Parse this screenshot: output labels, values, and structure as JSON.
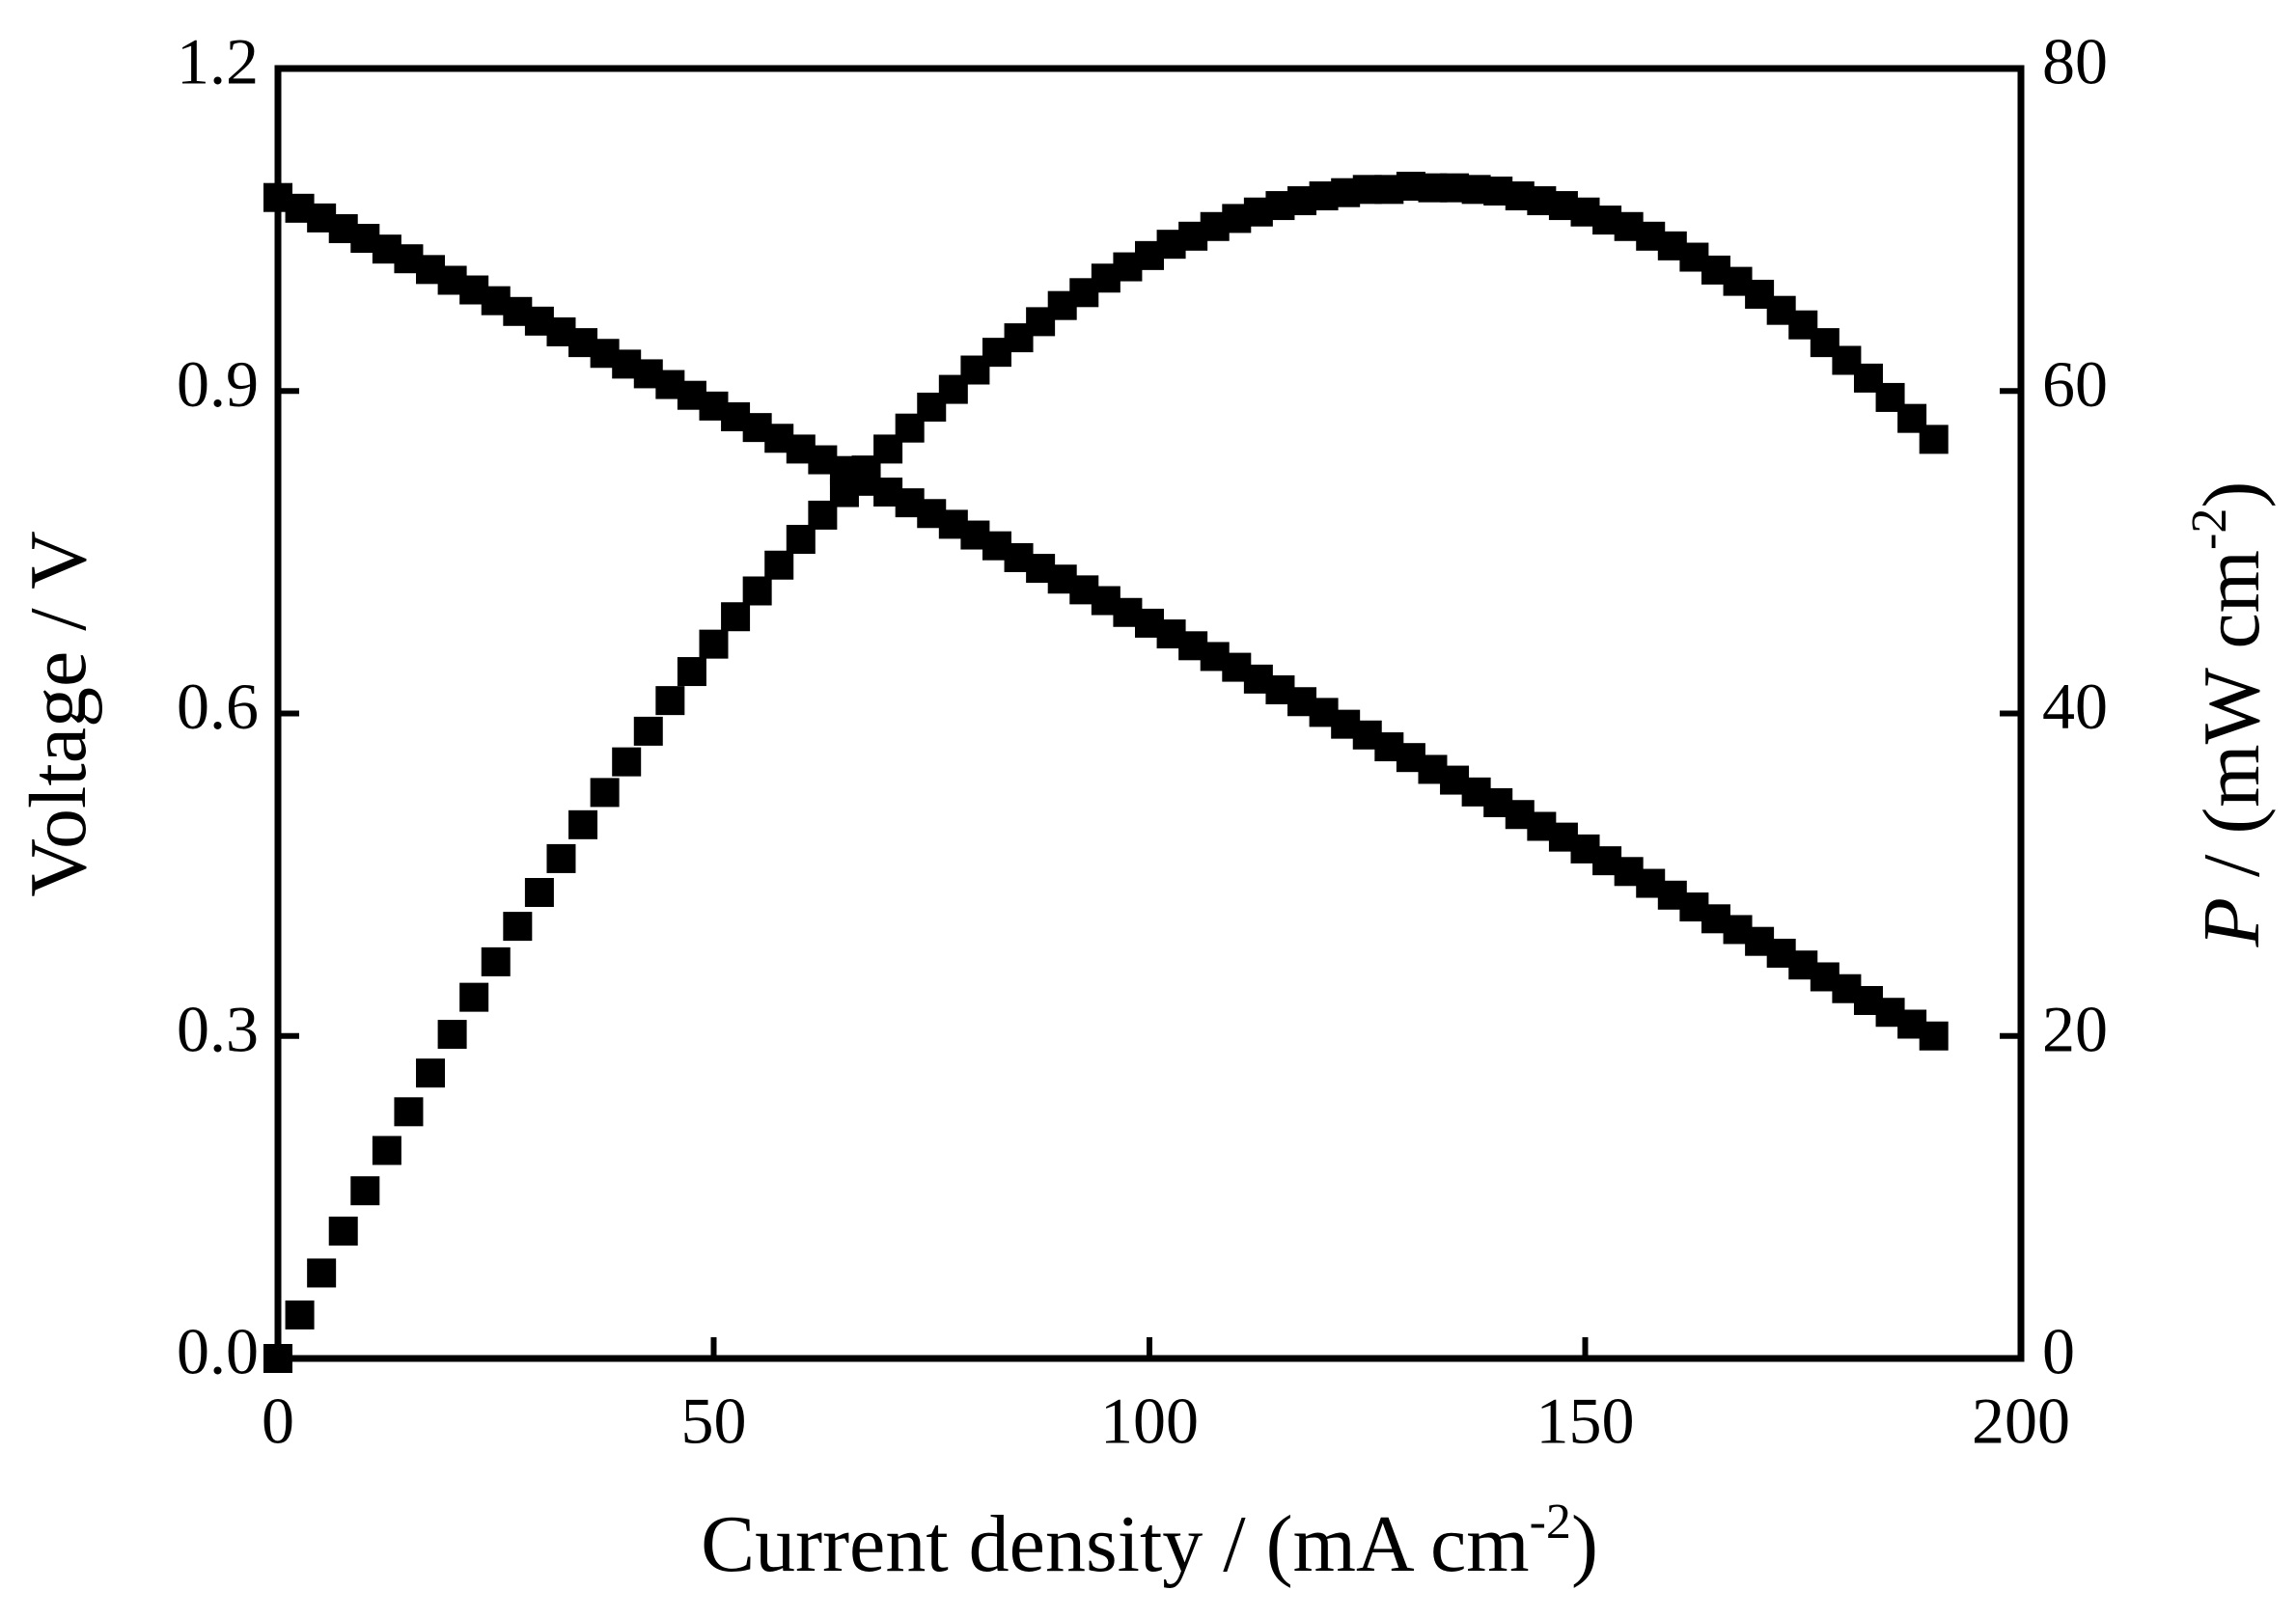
{
  "chart_data": {
    "type": "scatter",
    "xlabel": [
      "Current density / (mA cm",
      "-2",
      ")"
    ],
    "ylabel": "Voltage / V",
    "y2label": [
      "P",
      " / (mW cm",
      "-2",
      ")"
    ],
    "x": [
      0,
      2.5,
      5,
      7.5,
      10,
      12.5,
      15,
      17.5,
      20,
      22.5,
      25,
      27.5,
      30,
      32.5,
      35,
      37.5,
      40,
      42.5,
      45,
      47.5,
      50,
      52.5,
      55,
      57.5,
      60,
      62.5,
      65,
      67.5,
      70,
      72.5,
      75,
      77.5,
      80,
      82.5,
      85,
      87.5,
      90,
      92.5,
      95,
      97.5,
      100,
      102.5,
      105,
      107.5,
      110,
      112.5,
      115,
      117.5,
      120,
      122.5,
      125,
      127.5,
      130,
      132.5,
      135,
      137.5,
      140,
      142.5,
      145,
      147.5,
      150,
      152.5,
      155,
      157.5,
      160,
      162.5,
      165,
      167.5,
      170,
      172.5,
      175,
      177.5,
      180,
      182.5,
      185,
      187.5,
      190
    ],
    "series": [
      {
        "color": "#000000",
        "marker": "square",
        "values": [
          1.08,
          1.07,
          1.061,
          1.051,
          1.042,
          1.032,
          1.023,
          1.013,
          1.003,
          0.994,
          0.984,
          0.974,
          0.965,
          0.955,
          0.945,
          0.935,
          0.925,
          0.916,
          0.906,
          0.896,
          0.886,
          0.876,
          0.866,
          0.856,
          0.846,
          0.836,
          0.826,
          0.816,
          0.806,
          0.796,
          0.786,
          0.776,
          0.766,
          0.756,
          0.745,
          0.735,
          0.725,
          0.715,
          0.705,
          0.694,
          0.684,
          0.674,
          0.663,
          0.653,
          0.643,
          0.632,
          0.622,
          0.611,
          0.601,
          0.59,
          0.58,
          0.569,
          0.559,
          0.548,
          0.538,
          0.527,
          0.517,
          0.506,
          0.495,
          0.485,
          0.474,
          0.463,
          0.453,
          0.442,
          0.431,
          0.42,
          0.409,
          0.399,
          0.388,
          0.377,
          0.366,
          0.355,
          0.344,
          0.333,
          0.322,
          0.311,
          0.3
        ]
      },
      {
        "color": "#000000",
        "marker": "square",
        "axis": "y2",
        "values": [
          0,
          2.7,
          5.3,
          7.9,
          10.4,
          12.9,
          15.3,
          17.7,
          20.1,
          22.4,
          24.6,
          26.8,
          28.9,
          31.0,
          33.1,
          35.1,
          37.0,
          38.9,
          40.8,
          42.6,
          44.3,
          46.0,
          47.6,
          49.2,
          50.8,
          52.3,
          53.7,
          55.1,
          56.4,
          57.7,
          59.0,
          60.1,
          61.3,
          62.4,
          63.3,
          64.3,
          65.3,
          66.1,
          67.0,
          67.7,
          68.4,
          69.1,
          69.6,
          70.2,
          70.7,
          71.1,
          71.5,
          71.8,
          72.1,
          72.3,
          72.5,
          72.5,
          72.7,
          72.6,
          72.6,
          72.5,
          72.4,
          72.1,
          71.8,
          71.5,
          71.1,
          70.6,
          70.2,
          69.6,
          69.0,
          68.3,
          67.5,
          66.8,
          66.0,
          65.0,
          64.1,
          63.0,
          61.9,
          60.8,
          59.6,
          58.3,
          57.0
        ]
      }
    ],
    "xlim": [
      0,
      200
    ],
    "xticks": [
      0,
      50,
      100,
      150,
      200
    ],
    "ylim": [
      0,
      1.2
    ],
    "yticks": [
      {
        "value": 0,
        "label": "0.0"
      },
      0.3,
      0.6,
      0.9,
      1.2
    ],
    "y2lim": [
      0,
      80
    ],
    "y2ticks": [
      0,
      20,
      40,
      60,
      80
    ],
    "grid": false
  }
}
